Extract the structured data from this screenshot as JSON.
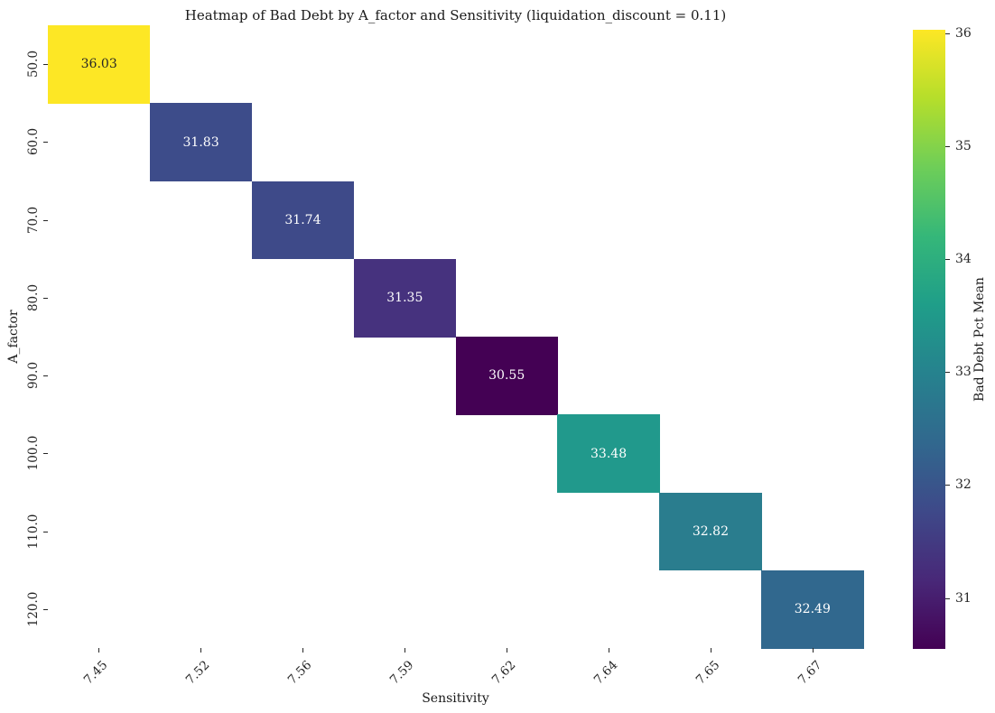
{
  "title": "Heatmap of Bad Debt by A_factor and Sensitivity (liquidation_discount = 0.11)",
  "chart_data": {
    "type": "heatmap",
    "title": "Heatmap of Bad Debt by A_factor and Sensitivity (liquidation_discount = 0.11)",
    "xlabel": "Sensitivity",
    "ylabel": "A_factor",
    "x_categories": [
      "7.45",
      "7.52",
      "7.56",
      "7.59",
      "7.62",
      "7.64",
      "7.65",
      "7.67"
    ],
    "y_categories": [
      "50.0",
      "60.0",
      "70.0",
      "80.0",
      "90.0",
      "100.0",
      "110.0",
      "120.0"
    ],
    "grid": "off",
    "empty_cell_color": "#ffffff",
    "cells": [
      {
        "row": 0,
        "col": 0,
        "x": "7.45",
        "y": "50.0",
        "value": "36.03",
        "color": "#fde725",
        "text_color": "#262626"
      },
      {
        "row": 1,
        "col": 1,
        "x": "7.52",
        "y": "60.0",
        "value": "31.83",
        "color": "#3d4c8a",
        "text_color": "#ffffff"
      },
      {
        "row": 2,
        "col": 2,
        "x": "7.56",
        "y": "70.0",
        "value": "31.74",
        "color": "#3e4a89",
        "text_color": "#ffffff"
      },
      {
        "row": 3,
        "col": 3,
        "x": "7.59",
        "y": "80.0",
        "value": "31.35",
        "color": "#46327e",
        "text_color": "#ffffff"
      },
      {
        "row": 4,
        "col": 4,
        "x": "7.62",
        "y": "90.0",
        "value": "30.55",
        "color": "#440154",
        "text_color": "#ffffff"
      },
      {
        "row": 5,
        "col": 5,
        "x": "7.64",
        "y": "100.0",
        "value": "33.48",
        "color": "#21998c",
        "text_color": "#ffffff"
      },
      {
        "row": 6,
        "col": 6,
        "x": "7.65",
        "y": "110.0",
        "value": "32.82",
        "color": "#2a7d8e",
        "text_color": "#ffffff"
      },
      {
        "row": 7,
        "col": 7,
        "x": "7.67",
        "y": "120.0",
        "value": "32.49",
        "color": "#31688e",
        "text_color": "#ffffff"
      }
    ],
    "colorbar": {
      "label": "Bad Debt Pct Mean",
      "colormap": "viridis",
      "vmin": 30.55,
      "vmax": 36.03,
      "ticks": [
        "36",
        "35",
        "34",
        "33",
        "32",
        "31"
      ],
      "tick_values": [
        36,
        35,
        34,
        33,
        32,
        31
      ],
      "gradient_stops_top_to_bottom": [
        "#fde725",
        "#b5de2b",
        "#6ece58",
        "#35b779",
        "#1f9e89",
        "#26828e",
        "#31688e",
        "#3e4989",
        "#482878",
        "#440154"
      ]
    }
  }
}
